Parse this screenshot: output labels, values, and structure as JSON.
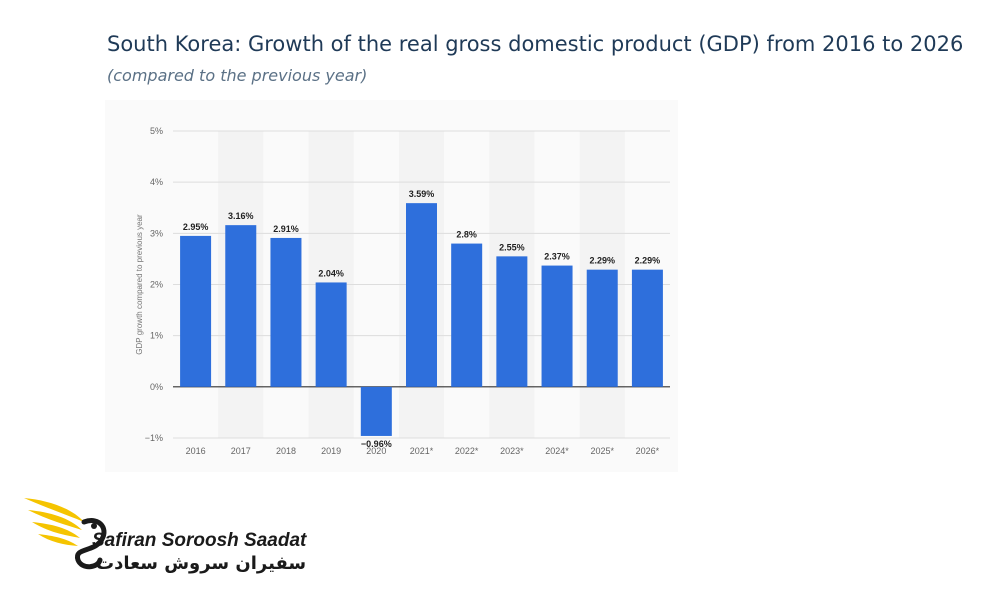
{
  "header": {
    "title": "South Korea: Growth of the real gross domestic product (GDP) from 2016 to 2026",
    "subtitle": "(compared to the previous year)"
  },
  "chart_data": {
    "type": "bar",
    "title": "South Korea: Growth of the real gross domestic product (GDP) from 2016 to 2026",
    "subtitle": "(compared to the previous year)",
    "xlabel": "",
    "ylabel": "GDP growth compared to previous year",
    "ylim": [
      -1,
      5
    ],
    "yticks": [
      5,
      4,
      3,
      2,
      1,
      0,
      -1
    ],
    "ytick_labels": [
      "5%",
      "4%",
      "3%",
      "2%",
      "1%",
      "0%",
      "−1%"
    ],
    "categories": [
      "2016",
      "2017",
      "2018",
      "2019",
      "2020",
      "2021*",
      "2022*",
      "2023*",
      "2024*",
      "2025*",
      "2026*"
    ],
    "values": [
      2.95,
      3.16,
      2.91,
      2.04,
      -0.96,
      3.59,
      2.8,
      2.55,
      2.37,
      2.29,
      2.29
    ],
    "data_labels": [
      "2.95%",
      "3.16%",
      "2.91%",
      "2.04%",
      "−0.96%",
      "3.59%",
      "2.8%",
      "2.55%",
      "2.37%",
      "2.29%",
      "2.29%"
    ],
    "bar_color": "#2e6fdc",
    "grid": true
  },
  "branding": {
    "name_en": "Safiran Soroosh Saadat",
    "name_fa": "سفیران سروش سعادت",
    "accent_color": "#f5c400"
  }
}
